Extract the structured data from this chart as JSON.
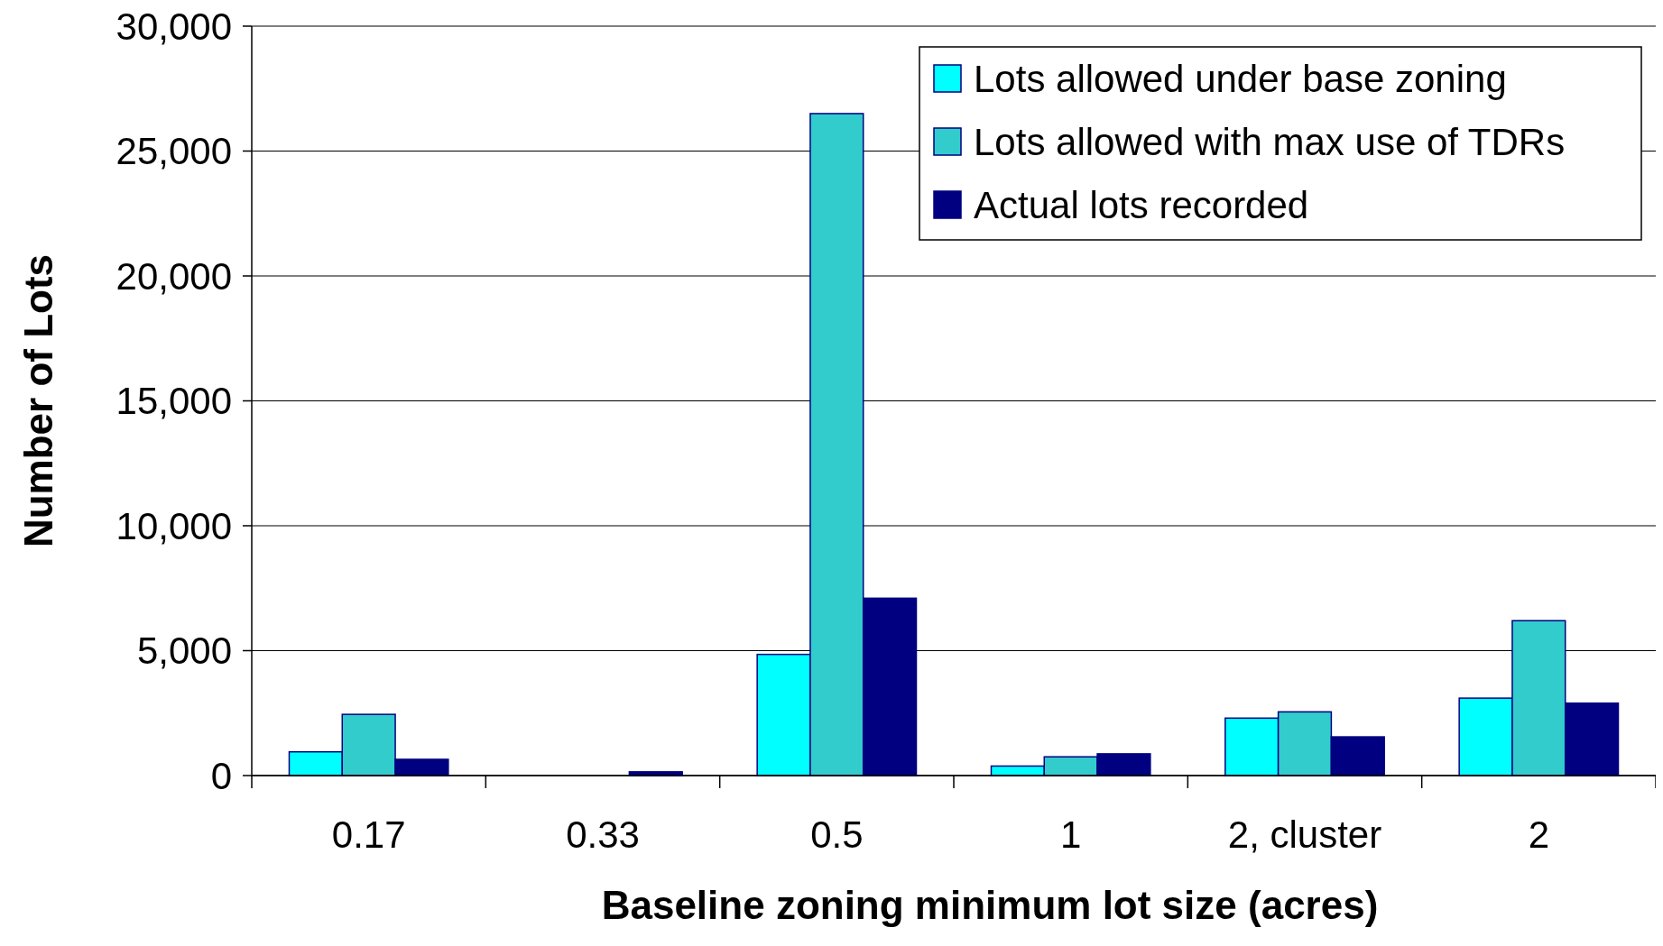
{
  "chart_data": {
    "type": "bar",
    "xlabel": "Baseline zoning minimum lot size (acres)",
    "ylabel": "Number of Lots",
    "categories": [
      "0.17",
      "0.33",
      "0.5",
      "1",
      "2, cluster",
      "2"
    ],
    "series": [
      {
        "name": "Lots allowed under base zoning",
        "color": "#00ffff",
        "values": [
          950,
          0,
          4850,
          380,
          2300,
          3100
        ]
      },
      {
        "name": "Lots allowed with max use of TDRs",
        "color": "#33cccc",
        "values": [
          2450,
          0,
          26500,
          750,
          2550,
          6200
        ]
      },
      {
        "name": "Actual lots recorded",
        "color": "#000080",
        "values": [
          650,
          150,
          7100,
          870,
          1550,
          2900
        ]
      }
    ],
    "ylim": [
      0,
      30000
    ],
    "yticks": [
      {
        "value": 0,
        "label": "0"
      },
      {
        "value": 5000,
        "label": "5,000"
      },
      {
        "value": 10000,
        "label": "10,000"
      },
      {
        "value": 15000,
        "label": "15,000"
      },
      {
        "value": 20000,
        "label": "20,000"
      },
      {
        "value": 25000,
        "label": "25,000"
      },
      {
        "value": 30000,
        "label": "30,000"
      }
    ],
    "grid": "y",
    "legend": "top right"
  }
}
